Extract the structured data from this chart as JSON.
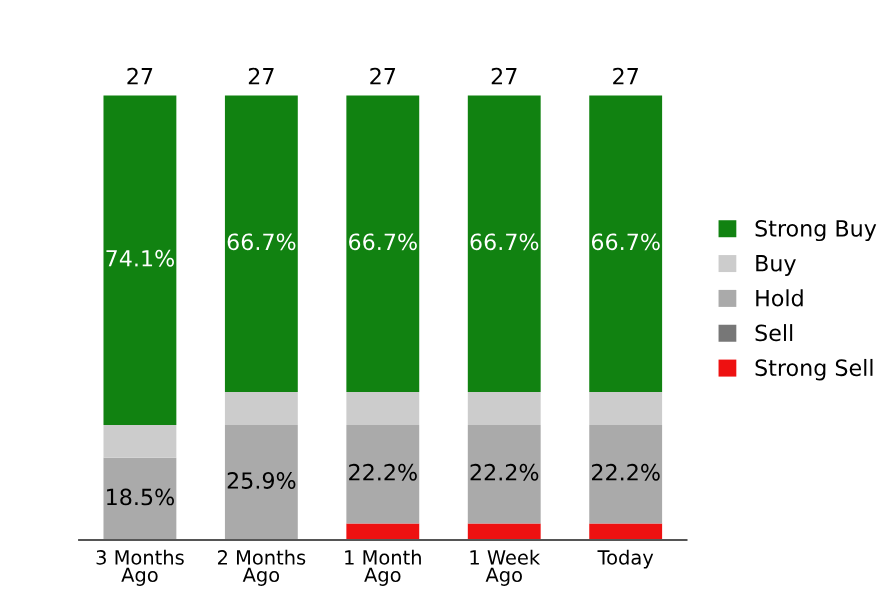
{
  "chart_data": {
    "type": "bar",
    "stacked": true,
    "categories": [
      "3 Months\nAgo",
      "2 Months\nAgo",
      "1 Month\nAgo",
      "1 Week\nAgo",
      "Today"
    ],
    "series": [
      {
        "name": "Strong Sell",
        "color": "#ee1111",
        "values": [
          0,
          0,
          3.7,
          3.7,
          3.7
        ],
        "value_labels": [
          null,
          null,
          null,
          null,
          null
        ]
      },
      {
        "name": "Sell",
        "color": "#777777",
        "values": [
          0,
          0,
          0,
          0,
          0
        ],
        "value_labels": [
          null,
          null,
          null,
          null,
          null
        ]
      },
      {
        "name": "Hold",
        "color": "#aaaaaa",
        "values": [
          18.5,
          25.9,
          22.2,
          22.2,
          22.2
        ],
        "value_labels": [
          "18.5%",
          "25.9%",
          "22.2%",
          "22.2%",
          "22.2%"
        ]
      },
      {
        "name": "Buy",
        "color": "#cccccc",
        "values": [
          7.4,
          7.4,
          7.4,
          7.4,
          7.4
        ],
        "value_labels": [
          null,
          null,
          null,
          null,
          null
        ]
      },
      {
        "name": "Strong Buy",
        "color": "#118211",
        "values": [
          74.1,
          66.7,
          66.7,
          66.7,
          66.7
        ],
        "value_labels": [
          "74.1%",
          "66.7%",
          "66.7%",
          "66.7%",
          "66.7%"
        ]
      }
    ],
    "annotations": [
      {
        "text": "27",
        "x": "3 Months\nAgo",
        "y": 100
      },
      {
        "text": "27",
        "x": "2 Months\nAgo",
        "y": 100
      },
      {
        "text": "27",
        "x": "1 Month\nAgo",
        "y": 100
      },
      {
        "text": "27",
        "x": "1 Week\nAgo",
        "y": 100
      },
      {
        "text": "27",
        "x": "Today",
        "y": 100
      }
    ],
    "legend": "right",
    "grid": false
  }
}
